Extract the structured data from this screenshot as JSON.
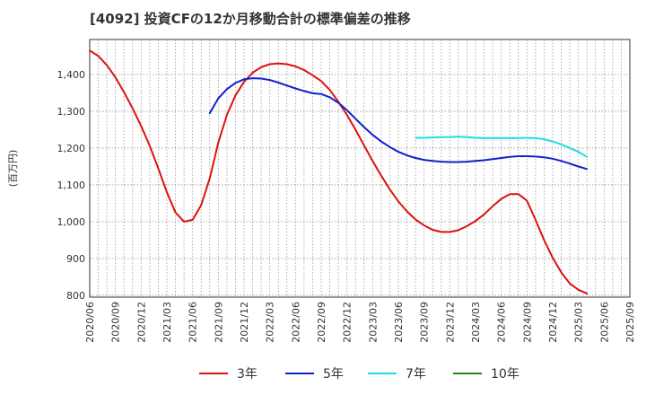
{
  "title": "[4092]  投資CFの12か月移動合計の標準偏差の推移",
  "chart_data": {
    "type": "line",
    "title": "[4092]  投資CFの12か月移動合計の標準偏差の推移",
    "ylabel": "(百万円)",
    "xlabel": "",
    "ylim": [
      795,
      1495
    ],
    "yticks": [
      800,
      900,
      1000,
      1100,
      1200,
      1300,
      1400
    ],
    "ytick_labels": [
      "800",
      "900",
      "1,000",
      "1,100",
      "1,200",
      "1,300",
      "1,400"
    ],
    "xlim": [
      "2020-06",
      "2025-09"
    ],
    "xticks": [
      "2020/06",
      "2020/09",
      "2020/12",
      "2021/03",
      "2021/06",
      "2021/09",
      "2021/12",
      "2022/03",
      "2022/06",
      "2022/09",
      "2022/12",
      "2023/03",
      "2023/06",
      "2023/09",
      "2023/12",
      "2024/03",
      "2024/06",
      "2024/09",
      "2024/12",
      "2025/03",
      "2025/06",
      "2025/09"
    ],
    "grid": true,
    "legend_position": "bottom",
    "series": [
      {
        "name": "3年",
        "color": "#dd1111",
        "points": [
          [
            "2020-06",
            1465
          ],
          [
            "2020-07",
            1450
          ],
          [
            "2020-08",
            1425
          ],
          [
            "2020-09",
            1392
          ],
          [
            "2020-10",
            1352
          ],
          [
            "2020-11",
            1308
          ],
          [
            "2020-12",
            1260
          ],
          [
            "2021-01",
            1206
          ],
          [
            "2021-02",
            1145
          ],
          [
            "2021-03",
            1080
          ],
          [
            "2021-04",
            1025
          ],
          [
            "2021-05",
            1000
          ],
          [
            "2021-06",
            1005
          ],
          [
            "2021-07",
            1045
          ],
          [
            "2021-08",
            1118
          ],
          [
            "2021-09",
            1215
          ],
          [
            "2021-10",
            1290
          ],
          [
            "2021-11",
            1343
          ],
          [
            "2021-12",
            1380
          ],
          [
            "2022-01",
            1405
          ],
          [
            "2022-02",
            1420
          ],
          [
            "2022-03",
            1428
          ],
          [
            "2022-04",
            1430
          ],
          [
            "2022-05",
            1428
          ],
          [
            "2022-06",
            1422
          ],
          [
            "2022-07",
            1412
          ],
          [
            "2022-08",
            1398
          ],
          [
            "2022-09",
            1382
          ],
          [
            "2022-10",
            1358
          ],
          [
            "2022-11",
            1326
          ],
          [
            "2022-12",
            1290
          ],
          [
            "2023-01",
            1250
          ],
          [
            "2023-02",
            1207
          ],
          [
            "2023-03",
            1165
          ],
          [
            "2023-04",
            1125
          ],
          [
            "2023-05",
            1088
          ],
          [
            "2023-06",
            1055
          ],
          [
            "2023-07",
            1028
          ],
          [
            "2023-08",
            1006
          ],
          [
            "2023-09",
            990
          ],
          [
            "2023-10",
            978
          ],
          [
            "2023-11",
            972
          ],
          [
            "2023-12",
            972
          ],
          [
            "2024-01",
            977
          ],
          [
            "2024-02",
            988
          ],
          [
            "2024-03",
            1002
          ],
          [
            "2024-04",
            1020
          ],
          [
            "2024-05",
            1042
          ],
          [
            "2024-06",
            1062
          ],
          [
            "2024-07",
            1075
          ],
          [
            "2024-08",
            1075
          ],
          [
            "2024-09",
            1057
          ],
          [
            "2024-10",
            1005
          ],
          [
            "2024-11",
            950
          ],
          [
            "2024-12",
            902
          ],
          [
            "2025-01",
            862
          ],
          [
            "2025-02",
            832
          ],
          [
            "2025-03",
            815
          ],
          [
            "2025-04",
            805
          ]
        ]
      },
      {
        "name": "5年",
        "color": "#1122cc",
        "points": [
          [
            "2021-08",
            1295
          ],
          [
            "2021-09",
            1335
          ],
          [
            "2021-10",
            1360
          ],
          [
            "2021-11",
            1377
          ],
          [
            "2021-12",
            1387
          ],
          [
            "2022-01",
            1390
          ],
          [
            "2022-02",
            1389
          ],
          [
            "2022-03",
            1385
          ],
          [
            "2022-04",
            1378
          ],
          [
            "2022-05",
            1370
          ],
          [
            "2022-06",
            1362
          ],
          [
            "2022-07",
            1355
          ],
          [
            "2022-08",
            1349
          ],
          [
            "2022-09",
            1347
          ],
          [
            "2022-10",
            1338
          ],
          [
            "2022-11",
            1323
          ],
          [
            "2022-12",
            1303
          ],
          [
            "2023-01",
            1280
          ],
          [
            "2023-02",
            1257
          ],
          [
            "2023-03",
            1236
          ],
          [
            "2023-04",
            1218
          ],
          [
            "2023-05",
            1203
          ],
          [
            "2023-06",
            1190
          ],
          [
            "2023-07",
            1180
          ],
          [
            "2023-08",
            1173
          ],
          [
            "2023-09",
            1168
          ],
          [
            "2023-10",
            1165
          ],
          [
            "2023-11",
            1163
          ],
          [
            "2023-12",
            1162
          ],
          [
            "2024-01",
            1162
          ],
          [
            "2024-02",
            1163
          ],
          [
            "2024-03",
            1165
          ],
          [
            "2024-04",
            1167
          ],
          [
            "2024-05",
            1170
          ],
          [
            "2024-06",
            1173
          ],
          [
            "2024-07",
            1176
          ],
          [
            "2024-08",
            1178
          ],
          [
            "2024-09",
            1178
          ],
          [
            "2024-10",
            1177
          ],
          [
            "2024-11",
            1175
          ],
          [
            "2024-12",
            1171
          ],
          [
            "2025-01",
            1165
          ],
          [
            "2025-02",
            1158
          ],
          [
            "2025-03",
            1150
          ],
          [
            "2025-04",
            1143
          ]
        ]
      },
      {
        "name": "7年",
        "color": "#22dddd",
        "points": [
          [
            "2023-08",
            1228
          ],
          [
            "2023-09",
            1228
          ],
          [
            "2023-10",
            1229
          ],
          [
            "2023-11",
            1230
          ],
          [
            "2023-12",
            1230
          ],
          [
            "2024-01",
            1231
          ],
          [
            "2024-02",
            1230
          ],
          [
            "2024-03",
            1228
          ],
          [
            "2024-04",
            1227
          ],
          [
            "2024-05",
            1227
          ],
          [
            "2024-06",
            1227
          ],
          [
            "2024-07",
            1227
          ],
          [
            "2024-08",
            1227
          ],
          [
            "2024-09",
            1228
          ],
          [
            "2024-10",
            1227
          ],
          [
            "2024-11",
            1224
          ],
          [
            "2024-12",
            1218
          ],
          [
            "2025-01",
            1210
          ],
          [
            "2025-02",
            1200
          ],
          [
            "2025-03",
            1190
          ],
          [
            "2025-04",
            1176
          ]
        ]
      },
      {
        "name": "10年",
        "color": "#228822",
        "points": []
      }
    ]
  }
}
